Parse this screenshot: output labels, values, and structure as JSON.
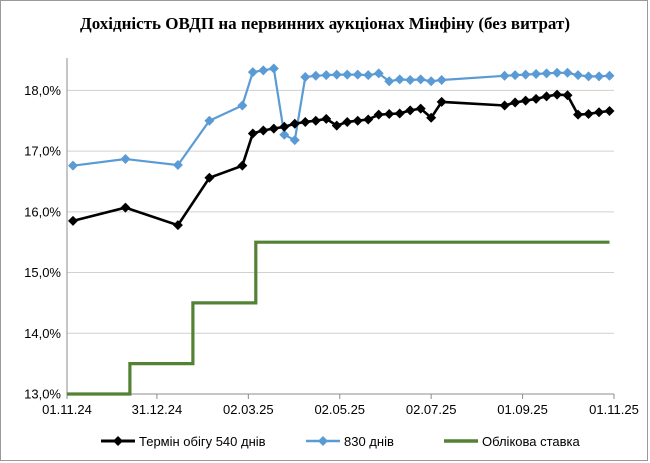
{
  "chart_data": {
    "type": "line",
    "title": "Дохідність ОВДП на первинних аукціонах Мінфіну (без витрат)",
    "xlabel": "",
    "ylabel": "",
    "ylim": [
      13.0,
      18.5
    ],
    "yticks": [
      13.0,
      14.0,
      15.0,
      16.0,
      17.0,
      18.0
    ],
    "ytick_labels": [
      "13,0%",
      "14,0%",
      "15,0%",
      "16,0%",
      "17,0%",
      "18,0%"
    ],
    "xlim": [
      "2024-11-01",
      "2025-11-01"
    ],
    "xticks": [
      "2024-11-01",
      "2024-12-31",
      "2025-03-02",
      "2025-05-02",
      "2025-07-02",
      "2025-09-01",
      "2025-11-01"
    ],
    "xtick_labels": [
      "01.11.24",
      "31.12.24",
      "02.03.25",
      "02.05.25",
      "02.07.25",
      "01.09.25",
      "01.11.25"
    ],
    "grid": "horizontal",
    "legend_position": "bottom",
    "colors": {
      "series_540": "#000000",
      "series_830": "#5b9bd5",
      "discount_rate": "#548235"
    },
    "series": [
      {
        "name": "Термін обігу 540 днів",
        "marker": "diamond",
        "points": [
          [
            "2024-11-05",
            15.85
          ],
          [
            "2024-12-10",
            16.07
          ],
          [
            "2025-01-14",
            15.78
          ],
          [
            "2025-02-04",
            16.56
          ],
          [
            "2025-02-26",
            16.76
          ],
          [
            "2025-03-05",
            17.29
          ],
          [
            "2025-03-12",
            17.34
          ],
          [
            "2025-03-19",
            17.37
          ],
          [
            "2025-03-26",
            17.4
          ],
          [
            "2025-04-02",
            17.45
          ],
          [
            "2025-04-09",
            17.48
          ],
          [
            "2025-04-16",
            17.5
          ],
          [
            "2025-04-23",
            17.53
          ],
          [
            "2025-04-30",
            17.42
          ],
          [
            "2025-05-07",
            17.48
          ],
          [
            "2025-05-14",
            17.5
          ],
          [
            "2025-05-21",
            17.52
          ],
          [
            "2025-05-28",
            17.6
          ],
          [
            "2025-06-04",
            17.61
          ],
          [
            "2025-06-11",
            17.62
          ],
          [
            "2025-06-18",
            17.67
          ],
          [
            "2025-06-25",
            17.7
          ],
          [
            "2025-07-02",
            17.55
          ],
          [
            "2025-07-09",
            17.81
          ],
          [
            "2025-08-20",
            17.75
          ],
          [
            "2025-08-27",
            17.8
          ],
          [
            "2025-09-03",
            17.83
          ],
          [
            "2025-09-10",
            17.86
          ],
          [
            "2025-09-17",
            17.9
          ],
          [
            "2025-09-24",
            17.93
          ],
          [
            "2025-10-01",
            17.92
          ],
          [
            "2025-10-08",
            17.6
          ],
          [
            "2025-10-15",
            17.61
          ],
          [
            "2025-10-22",
            17.64
          ],
          [
            "2025-10-29",
            17.66
          ]
        ]
      },
      {
        "name": "830 днів",
        "marker": "diamond",
        "points": [
          [
            "2024-11-05",
            16.76
          ],
          [
            "2024-12-10",
            16.87
          ],
          [
            "2025-01-14",
            16.77
          ],
          [
            "2025-02-04",
            17.5
          ],
          [
            "2025-02-26",
            17.75
          ],
          [
            "2025-03-05",
            18.3
          ],
          [
            "2025-03-12",
            18.33
          ],
          [
            "2025-03-19",
            18.36
          ],
          [
            "2025-03-26",
            17.27
          ],
          [
            "2025-04-02",
            17.18
          ],
          [
            "2025-04-09",
            18.22
          ],
          [
            "2025-04-16",
            18.24
          ],
          [
            "2025-04-23",
            18.25
          ],
          [
            "2025-04-30",
            18.26
          ],
          [
            "2025-05-07",
            18.26
          ],
          [
            "2025-05-14",
            18.26
          ],
          [
            "2025-05-21",
            18.25
          ],
          [
            "2025-05-28",
            18.28
          ],
          [
            "2025-06-04",
            18.15
          ],
          [
            "2025-06-11",
            18.18
          ],
          [
            "2025-06-18",
            18.17
          ],
          [
            "2025-06-25",
            18.18
          ],
          [
            "2025-07-02",
            18.15
          ],
          [
            "2025-07-09",
            18.17
          ],
          [
            "2025-08-20",
            18.24
          ],
          [
            "2025-08-27",
            18.25
          ],
          [
            "2025-09-03",
            18.26
          ],
          [
            "2025-09-10",
            18.27
          ],
          [
            "2025-09-17",
            18.28
          ],
          [
            "2025-09-24",
            18.29
          ],
          [
            "2025-10-01",
            18.29
          ],
          [
            "2025-10-08",
            18.25
          ],
          [
            "2025-10-15",
            18.23
          ],
          [
            "2025-10-22",
            18.23
          ],
          [
            "2025-10-29",
            18.24
          ]
        ]
      },
      {
        "name": "Облікова ставка",
        "style": "step",
        "points": [
          [
            "2024-11-01",
            13.0
          ],
          [
            "2024-12-13",
            13.0
          ],
          [
            "2024-12-13",
            13.5
          ],
          [
            "2025-01-24",
            13.5
          ],
          [
            "2025-01-24",
            14.5
          ],
          [
            "2025-03-07",
            14.5
          ],
          [
            "2025-03-07",
            15.5
          ],
          [
            "2025-10-29",
            15.5
          ]
        ]
      }
    ]
  }
}
